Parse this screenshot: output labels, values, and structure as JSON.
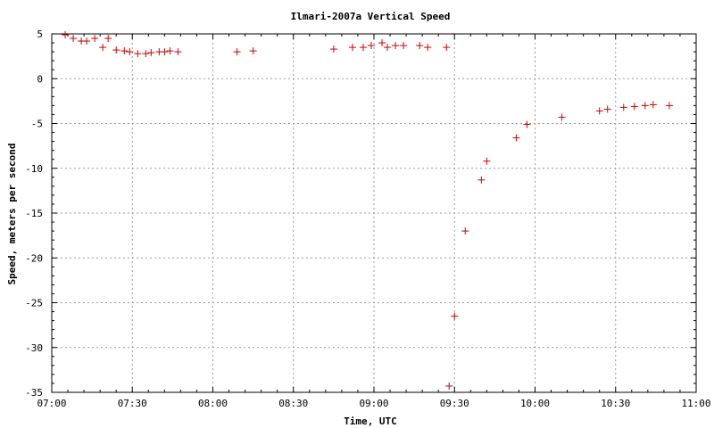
{
  "chart_data": {
    "type": "scatter",
    "title": "Ilmari-2007a  Vertical Speed",
    "xlabel": "Time, UTC",
    "ylabel": "Speed, meters per second",
    "xlim": [
      "07:00",
      "11:00"
    ],
    "ylim": [
      -35,
      5
    ],
    "x_ticks": [
      "07:00",
      "07:30",
      "08:00",
      "08:30",
      "09:00",
      "09:30",
      "10:00",
      "10:30",
      "11:00"
    ],
    "y_ticks": [
      5,
      0,
      -5,
      -10,
      -15,
      -20,
      -25,
      -30,
      -35
    ],
    "grid": true,
    "marker": "+",
    "color": "#cc0000",
    "series": [
      {
        "points": [
          {
            "x": "07:05",
            "y": 4.9
          },
          {
            "x": "07:08",
            "y": 4.5
          },
          {
            "x": "07:11",
            "y": 4.2
          },
          {
            "x": "07:13",
            "y": 4.2
          },
          {
            "x": "07:16",
            "y": 4.5
          },
          {
            "x": "07:19",
            "y": 3.5
          },
          {
            "x": "07:21",
            "y": 4.5
          },
          {
            "x": "07:24",
            "y": 3.2
          },
          {
            "x": "07:27",
            "y": 3.1
          },
          {
            "x": "07:29",
            "y": 3.0
          },
          {
            "x": "07:32",
            "y": 2.8
          },
          {
            "x": "07:35",
            "y": 2.8
          },
          {
            "x": "07:37",
            "y": 2.9
          },
          {
            "x": "07:40",
            "y": 3.0
          },
          {
            "x": "07:42",
            "y": 3.0
          },
          {
            "x": "07:44",
            "y": 3.1
          },
          {
            "x": "07:47",
            "y": 3.0
          },
          {
            "x": "08:09",
            "y": 3.0
          },
          {
            "x": "08:15",
            "y": 3.1
          },
          {
            "x": "08:45",
            "y": 3.3
          },
          {
            "x": "08:52",
            "y": 3.5
          },
          {
            "x": "08:56",
            "y": 3.5
          },
          {
            "x": "08:59",
            "y": 3.7
          },
          {
            "x": "09:03",
            "y": 4.0
          },
          {
            "x": "09:05",
            "y": 3.5
          },
          {
            "x": "09:08",
            "y": 3.7
          },
          {
            "x": "09:11",
            "y": 3.7
          },
          {
            "x": "09:17",
            "y": 3.7
          },
          {
            "x": "09:20",
            "y": 3.5
          },
          {
            "x": "09:27",
            "y": 3.5
          },
          {
            "x": "09:28",
            "y": -34.3
          },
          {
            "x": "09:30",
            "y": -26.5
          },
          {
            "x": "09:34",
            "y": -17.0
          },
          {
            "x": "09:40",
            "y": -11.3
          },
          {
            "x": "09:42",
            "y": -9.2
          },
          {
            "x": "09:53",
            "y": -6.6
          },
          {
            "x": "09:57",
            "y": -5.1
          },
          {
            "x": "10:10",
            "y": -4.3
          },
          {
            "x": "10:24",
            "y": -3.6
          },
          {
            "x": "10:27",
            "y": -3.4
          },
          {
            "x": "10:33",
            "y": -3.2
          },
          {
            "x": "10:37",
            "y": -3.1
          },
          {
            "x": "10:41",
            "y": -3.0
          },
          {
            "x": "10:44",
            "y": -2.9
          },
          {
            "x": "10:50",
            "y": -3.0
          }
        ]
      }
    ]
  }
}
